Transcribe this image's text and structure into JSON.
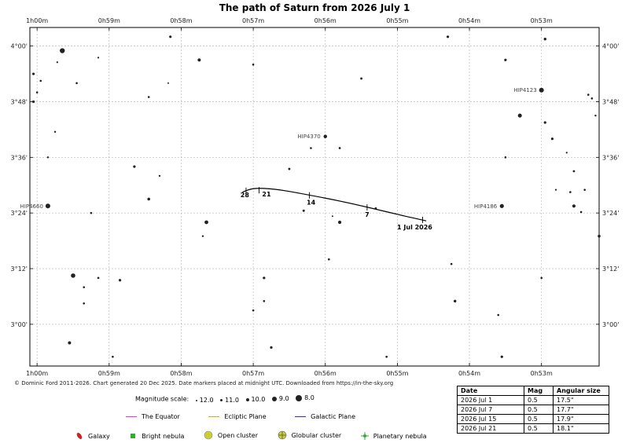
{
  "chart_data": {
    "type": "scatter",
    "title": "The path of Saturn from 2026 July 1",
    "x_ticks": [
      "1h00m",
      "0h59m",
      "0h58m",
      "0h57m",
      "0h56m",
      "0h55m",
      "0h54m",
      "0h53m"
    ],
    "y_ticks": [
      "4°00'",
      "3°48'",
      "3°36'",
      "3°24'",
      "3°12'",
      "3°00'"
    ],
    "xlim_minutes": [
      60.1,
      52.2
    ],
    "ylim_arcmin": [
      171,
      244
    ],
    "grid": true,
    "stars": [
      {
        "ra": 59.65,
        "dec": 239,
        "size": 3.2
      },
      {
        "ra": 60.05,
        "dec": 234,
        "size": 1.6
      },
      {
        "ra": 59.95,
        "dec": 232.5,
        "size": 1.3
      },
      {
        "ra": 59.72,
        "dec": 236.5,
        "size": 1.1
      },
      {
        "ra": 59.45,
        "dec": 232,
        "size": 1.3
      },
      {
        "ra": 59.15,
        "dec": 237.5,
        "size": 1.1
      },
      {
        "ra": 58.15,
        "dec": 242,
        "size": 1.6
      },
      {
        "ra": 57.75,
        "dec": 237,
        "size": 2.0
      },
      {
        "ra": 57.0,
        "dec": 236,
        "size": 1.3
      },
      {
        "ra": 58.18,
        "dec": 232,
        "size": 1.0
      },
      {
        "ra": 58.45,
        "dec": 229,
        "size": 1.3
      },
      {
        "ra": 60.05,
        "dec": 228,
        "size": 1.6
      },
      {
        "ra": 59.75,
        "dec": 221.5,
        "size": 1.2
      },
      {
        "ra": 58.65,
        "dec": 214,
        "size": 1.6
      },
      {
        "ra": 58.3,
        "dec": 212,
        "size": 1.2
      },
      {
        "ra": 58.45,
        "dec": 207,
        "size": 1.8
      },
      {
        "ra": 59.25,
        "dec": 204,
        "size": 1.3
      },
      {
        "ra": 57.65,
        "dec": 202,
        "size": 2.4
      },
      {
        "ra": 57.7,
        "dec": 199,
        "size": 1.2
      },
      {
        "ra": 56.5,
        "dec": 213.5,
        "size": 1.4
      },
      {
        "ra": 55.8,
        "dec": 218,
        "size": 1.3
      },
      {
        "ra": 55.5,
        "dec": 233,
        "size": 1.4
      },
      {
        "ra": 55.3,
        "dec": 205,
        "size": 1.4
      },
      {
        "ra": 55.8,
        "dec": 202,
        "size": 2.1
      },
      {
        "ra": 55.9,
        "dec": 203.3,
        "size": 1.0
      },
      {
        "ra": 56.3,
        "dec": 204.5,
        "size": 1.5
      },
      {
        "ra": 55.95,
        "dec": 194,
        "size": 1.3
      },
      {
        "ra": 59.5,
        "dec": 190.5,
        "size": 2.8
      },
      {
        "ra": 59.15,
        "dec": 190,
        "size": 1.3
      },
      {
        "ra": 58.85,
        "dec": 189.5,
        "size": 1.6
      },
      {
        "ra": 59.35,
        "dec": 188,
        "size": 1.3
      },
      {
        "ra": 59.35,
        "dec": 184.5,
        "size": 1.3
      },
      {
        "ra": 59.55,
        "dec": 176,
        "size": 2.0
      },
      {
        "ra": 58.95,
        "dec": 173,
        "size": 1.3
      },
      {
        "ra": 56.85,
        "dec": 190,
        "size": 1.6
      },
      {
        "ra": 56.85,
        "dec": 185,
        "size": 1.3
      },
      {
        "ra": 57.0,
        "dec": 183,
        "size": 1.3
      },
      {
        "ra": 56.75,
        "dec": 175,
        "size": 1.6
      },
      {
        "ra": 55.15,
        "dec": 173,
        "size": 1.3
      },
      {
        "ra": 54.3,
        "dec": 242,
        "size": 1.6
      },
      {
        "ra": 53.5,
        "dec": 237,
        "size": 1.6
      },
      {
        "ra": 53.3,
        "dec": 225,
        "size": 2.5
      },
      {
        "ra": 52.95,
        "dec": 223.5,
        "size": 1.6
      },
      {
        "ra": 53.5,
        "dec": 216,
        "size": 1.3
      },
      {
        "ra": 52.85,
        "dec": 220,
        "size": 1.6
      },
      {
        "ra": 52.65,
        "dec": 217,
        "size": 1.1
      },
      {
        "ra": 52.55,
        "dec": 213,
        "size": 1.4
      },
      {
        "ra": 52.35,
        "dec": 229.5,
        "size": 1.3
      },
      {
        "ra": 52.3,
        "dec": 228.7,
        "size": 1.3
      },
      {
        "ra": 52.25,
        "dec": 225,
        "size": 1.2
      },
      {
        "ra": 52.95,
        "dec": 241.5,
        "size": 1.7
      },
      {
        "ra": 52.8,
        "dec": 209,
        "size": 1.1
      },
      {
        "ra": 52.6,
        "dec": 208.5,
        "size": 1.3
      },
      {
        "ra": 52.4,
        "dec": 209,
        "size": 1.3
      },
      {
        "ra": 52.55,
        "dec": 205.5,
        "size": 2.1
      },
      {
        "ra": 52.45,
        "dec": 204.2,
        "size": 1.3
      },
      {
        "ra": 52.2,
        "dec": 199,
        "size": 1.8
      },
      {
        "ra": 54.25,
        "dec": 193,
        "size": 1.3
      },
      {
        "ra": 53.0,
        "dec": 190,
        "size": 1.3
      },
      {
        "ra": 54.2,
        "dec": 185,
        "size": 1.7
      },
      {
        "ra": 53.6,
        "dec": 182,
        "size": 1.3
      },
      {
        "ra": 53.55,
        "dec": 173,
        "size": 1.6
      },
      {
        "ra": 56.0,
        "dec": 220.5,
        "size": 2.0
      },
      {
        "ra": 59.85,
        "dec": 216,
        "size": 1.2
      },
      {
        "ra": 60.0,
        "dec": 230,
        "size": 1.3
      },
      {
        "ra": 56.2,
        "dec": 218,
        "size": 1.3
      },
      {
        "ra": 55.8,
        "dec": 218,
        "size": 1.3
      }
    ],
    "named_stars": [
      {
        "label": "HIP4660",
        "ra": 59.85,
        "dec": 205.5,
        "size": 3.0
      },
      {
        "label": "HIP4370",
        "ra": 56.0,
        "dec": 220.5,
        "size": 2.2
      },
      {
        "label": "HIP4186",
        "ra": 53.55,
        "dec": 205.5,
        "size": 2.6
      },
      {
        "label": "HIP4123",
        "ra": 53.0,
        "dec": 230.5,
        "size": 3.0
      }
    ],
    "path": [
      {
        "ra": 57.15,
        "dec": 208.5
      },
      {
        "ra": 57.0,
        "dec": 209.4
      },
      {
        "ra": 56.7,
        "dec": 209.2
      },
      {
        "ra": 56.3,
        "dec": 208.1
      },
      {
        "ra": 55.7,
        "dec": 206.3
      },
      {
        "ra": 55.0,
        "dec": 203.7
      },
      {
        "ra": 54.6,
        "dec": 202.3
      }
    ],
    "path_marks": [
      {
        "label": "28",
        "ra": 57.1,
        "dec": 208.8
      },
      {
        "label": "21",
        "ra": 56.92,
        "dec": 208.9
      },
      {
        "label": "14",
        "ra": 56.22,
        "dec": 207.8
      },
      {
        "label": "7",
        "ra": 55.42,
        "dec": 205.2
      },
      {
        "label": "1 Jul 2026",
        "ra": 54.65,
        "dec": 202.5
      }
    ],
    "table": {
      "headers": [
        "Date",
        "Mag",
        "Angular size"
      ],
      "rows": [
        [
          "2026 Jul 1",
          "0.5",
          "17.5\""
        ],
        [
          "2026 Jul 7",
          "0.5",
          "17.7\""
        ],
        [
          "2026 Jul 15",
          "0.5",
          "17.9\""
        ],
        [
          "2026 Jul 21",
          "0.5",
          "18.1\""
        ]
      ]
    }
  },
  "copyright": "© Dominic Ford 2011-2026. Chart generated 20 Dec 2025. Date markers placed at midnight UTC. Downloaded from https://in-the-sky.org",
  "mag_scale": {
    "label": "Magnitude scale:",
    "items": [
      "12.0",
      "11.0",
      "10.0",
      "9.0",
      "8.0"
    ]
  },
  "line_legend": [
    {
      "label": "The Equator",
      "color": "#cc44cc"
    },
    {
      "label": "Ecliptic Plane",
      "color": "#d4a62a"
    },
    {
      "label": "Galactic Plane",
      "color": "#3333aa"
    }
  ],
  "object_legend": [
    {
      "label": "Galaxy",
      "icon": "galaxy-icon",
      "color": "#cc2222"
    },
    {
      "label": "Bright nebula",
      "icon": "bright-nebula-icon",
      "color": "#33aa33"
    },
    {
      "label": "Open cluster",
      "icon": "open-cluster-icon",
      "color": "#cccc33"
    },
    {
      "label": "Globular cluster",
      "icon": "globular-cluster-icon",
      "color": "#cccc33"
    },
    {
      "label": "Planetary nebula",
      "icon": "planetary-nebula-icon",
      "color": "#33aa33"
    }
  ]
}
